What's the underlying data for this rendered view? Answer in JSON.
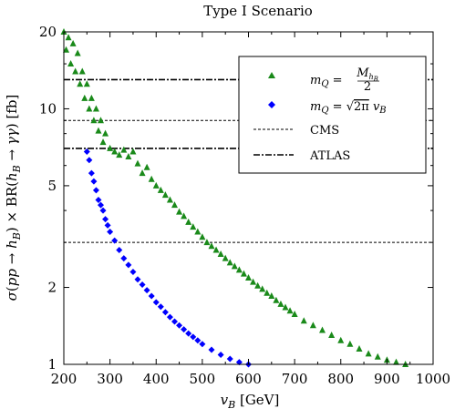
{
  "chart_data": {
    "type": "scatter",
    "title": "Type I Scenario",
    "xlabel": "v_B [GeV]",
    "ylabel": "σ(pp → h_B) × BR(h_B → γγ) [fb]",
    "xlim": [
      200,
      1000
    ],
    "ylim": [
      1,
      20
    ],
    "yscale": "log",
    "xticks": [
      "200",
      "300",
      "400",
      "500",
      "600",
      "700",
      "800",
      "900",
      "1000"
    ],
    "yticks": [
      "1",
      "2",
      "5",
      "10",
      "20"
    ],
    "grid": false,
    "legend_position": "top-right",
    "series": [
      {
        "name": "m_Q = M_{h_B}/2",
        "marker": "triangle",
        "color": "#1a8a1a",
        "points": [
          [
            200,
            20
          ],
          [
            205,
            17
          ],
          [
            210,
            19
          ],
          [
            215,
            15
          ],
          [
            220,
            18
          ],
          [
            225,
            14
          ],
          [
            230,
            16.5
          ],
          [
            235,
            12.5
          ],
          [
            240,
            14
          ],
          [
            245,
            11
          ],
          [
            250,
            12.5
          ],
          [
            255,
            10
          ],
          [
            260,
            11
          ],
          [
            265,
            9
          ],
          [
            270,
            10
          ],
          [
            275,
            8.2
          ],
          [
            280,
            9
          ],
          [
            285,
            7.4
          ],
          [
            290,
            8
          ],
          [
            300,
            7
          ],
          [
            310,
            6.8
          ],
          [
            320,
            6.6
          ],
          [
            330,
            6.9
          ],
          [
            340,
            6.5
          ],
          [
            350,
            6.8
          ],
          [
            360,
            6.1
          ],
          [
            370,
            5.6
          ],
          [
            380,
            5.9
          ],
          [
            390,
            5.3
          ],
          [
            400,
            5.0
          ],
          [
            410,
            4.8
          ],
          [
            420,
            4.6
          ],
          [
            430,
            4.4
          ],
          [
            440,
            4.2
          ],
          [
            450,
            3.95
          ],
          [
            460,
            3.8
          ],
          [
            470,
            3.6
          ],
          [
            480,
            3.45
          ],
          [
            490,
            3.3
          ],
          [
            500,
            3.15
          ],
          [
            510,
            3.0
          ],
          [
            520,
            2.9
          ],
          [
            530,
            2.8
          ],
          [
            540,
            2.7
          ],
          [
            550,
            2.6
          ],
          [
            560,
            2.5
          ],
          [
            570,
            2.42
          ],
          [
            580,
            2.34
          ],
          [
            590,
            2.26
          ],
          [
            600,
            2.18
          ],
          [
            610,
            2.1
          ],
          [
            620,
            2.03
          ],
          [
            630,
            1.97
          ],
          [
            640,
            1.9
          ],
          [
            650,
            1.85
          ],
          [
            660,
            1.78
          ],
          [
            670,
            1.72
          ],
          [
            680,
            1.67
          ],
          [
            690,
            1.62
          ],
          [
            700,
            1.57
          ],
          [
            720,
            1.48
          ],
          [
            740,
            1.42
          ],
          [
            760,
            1.36
          ],
          [
            780,
            1.3
          ],
          [
            800,
            1.24
          ],
          [
            820,
            1.2
          ],
          [
            840,
            1.15
          ],
          [
            860,
            1.1
          ],
          [
            880,
            1.07
          ],
          [
            900,
            1.04
          ],
          [
            920,
            1.02
          ],
          [
            940,
            1.0
          ]
        ]
      },
      {
        "name": "m_Q = √(2π) v_B",
        "marker": "diamond",
        "color": "#0000ff",
        "points": [
          [
            250,
            6.8
          ],
          [
            255,
            6.3
          ],
          [
            260,
            5.6
          ],
          [
            265,
            5.2
          ],
          [
            270,
            4.8
          ],
          [
            275,
            4.4
          ],
          [
            280,
            4.2
          ],
          [
            285,
            4.0
          ],
          [
            290,
            3.7
          ],
          [
            295,
            3.5
          ],
          [
            300,
            3.3
          ],
          [
            310,
            3.05
          ],
          [
            320,
            2.8
          ],
          [
            330,
            2.6
          ],
          [
            340,
            2.45
          ],
          [
            350,
            2.3
          ],
          [
            360,
            2.15
          ],
          [
            370,
            2.05
          ],
          [
            380,
            1.95
          ],
          [
            390,
            1.85
          ],
          [
            400,
            1.75
          ],
          [
            410,
            1.68
          ],
          [
            420,
            1.6
          ],
          [
            430,
            1.53
          ],
          [
            440,
            1.47
          ],
          [
            450,
            1.42
          ],
          [
            460,
            1.37
          ],
          [
            470,
            1.32
          ],
          [
            480,
            1.28
          ],
          [
            490,
            1.24
          ],
          [
            500,
            1.2
          ],
          [
            520,
            1.14
          ],
          [
            540,
            1.09
          ],
          [
            560,
            1.05
          ],
          [
            580,
            1.02
          ],
          [
            600,
            1.0
          ]
        ]
      }
    ],
    "reference_lines": [
      {
        "name": "CMS",
        "style": "dashed",
        "values": [
          9,
          3
        ]
      },
      {
        "name": "ATLAS",
        "style": "dash-dot",
        "values": [
          13,
          7
        ]
      }
    ],
    "legend": {
      "entries": [
        {
          "label_prefix": "m_Q =",
          "label_num": "M_{h_B}",
          "label_den": "2"
        },
        {
          "label_prefix": "m_Q =",
          "label_expr": "√(2π) v_B"
        },
        {
          "label": "CMS"
        },
        {
          "label": "ATLAS"
        }
      ]
    }
  }
}
